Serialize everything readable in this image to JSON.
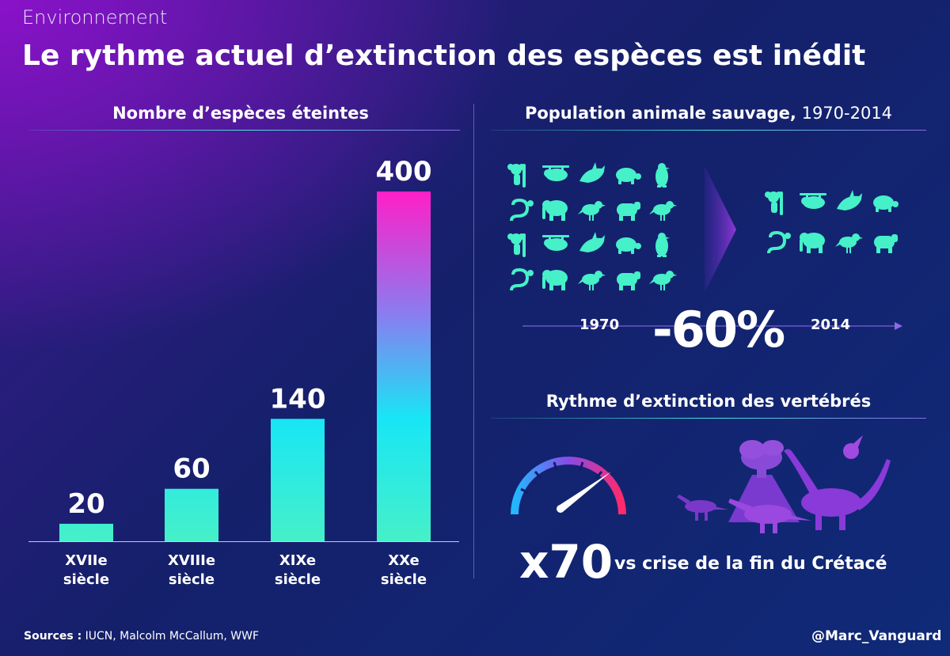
{
  "header": {
    "category": "Environnement",
    "title": "Le rythme actuel d’extinction des espèces est inédit"
  },
  "left_panel": {
    "title": "Nombre d’espèces éteintes"
  },
  "chart_data": {
    "type": "bar",
    "title": "Nombre d’espèces éteintes",
    "categories": [
      [
        "XVIIe",
        "siècle"
      ],
      [
        "XVIIIe",
        "siècle"
      ],
      [
        "XIXe",
        "siècle"
      ],
      [
        "XXe",
        "siècle"
      ]
    ],
    "values": [
      20,
      60,
      140,
      400
    ],
    "ylim": [
      0,
      400
    ],
    "grid": false,
    "legend": "none",
    "colors": {
      "low": "#46f0c8",
      "mid": "#18e6f5",
      "high": "#ff1fc8"
    }
  },
  "right_panel": {
    "title_bold": "Population animale sauvage,",
    "title_light": " 1970-2014",
    "year_start": "1970",
    "year_end": "2014",
    "change": "-60%",
    "animals_before": [
      "koala-icon",
      "sloth-icon",
      "orca-icon",
      "turtle-icon",
      "penguin-icon",
      "snake-icon",
      "elephant-icon",
      "bird-icon",
      "hippo-icon",
      "bird-icon",
      "koala-icon",
      "sloth-icon",
      "orca-icon",
      "turtle-icon",
      "penguin-icon",
      "snake-icon",
      "elephant-icon",
      "bird-icon",
      "hippo-icon",
      "bird-icon"
    ],
    "animals_after": [
      "koala-icon",
      "sloth-icon",
      "orca-icon",
      "turtle-icon",
      "snake-icon",
      "elephant-icon",
      "bird-icon",
      "hippo-icon"
    ],
    "icon_color": "#46f0c8"
  },
  "vertebrates": {
    "title": "Rythme d’extinction des vertébrés",
    "multiplier": "x70",
    "note": "vs crise de la fin du Crétacé"
  },
  "footer": {
    "sources_label": "Sources :",
    "sources_text": " IUCN, Malcolm McCallum, WWF",
    "handle": "@Marc_Vanguard"
  }
}
